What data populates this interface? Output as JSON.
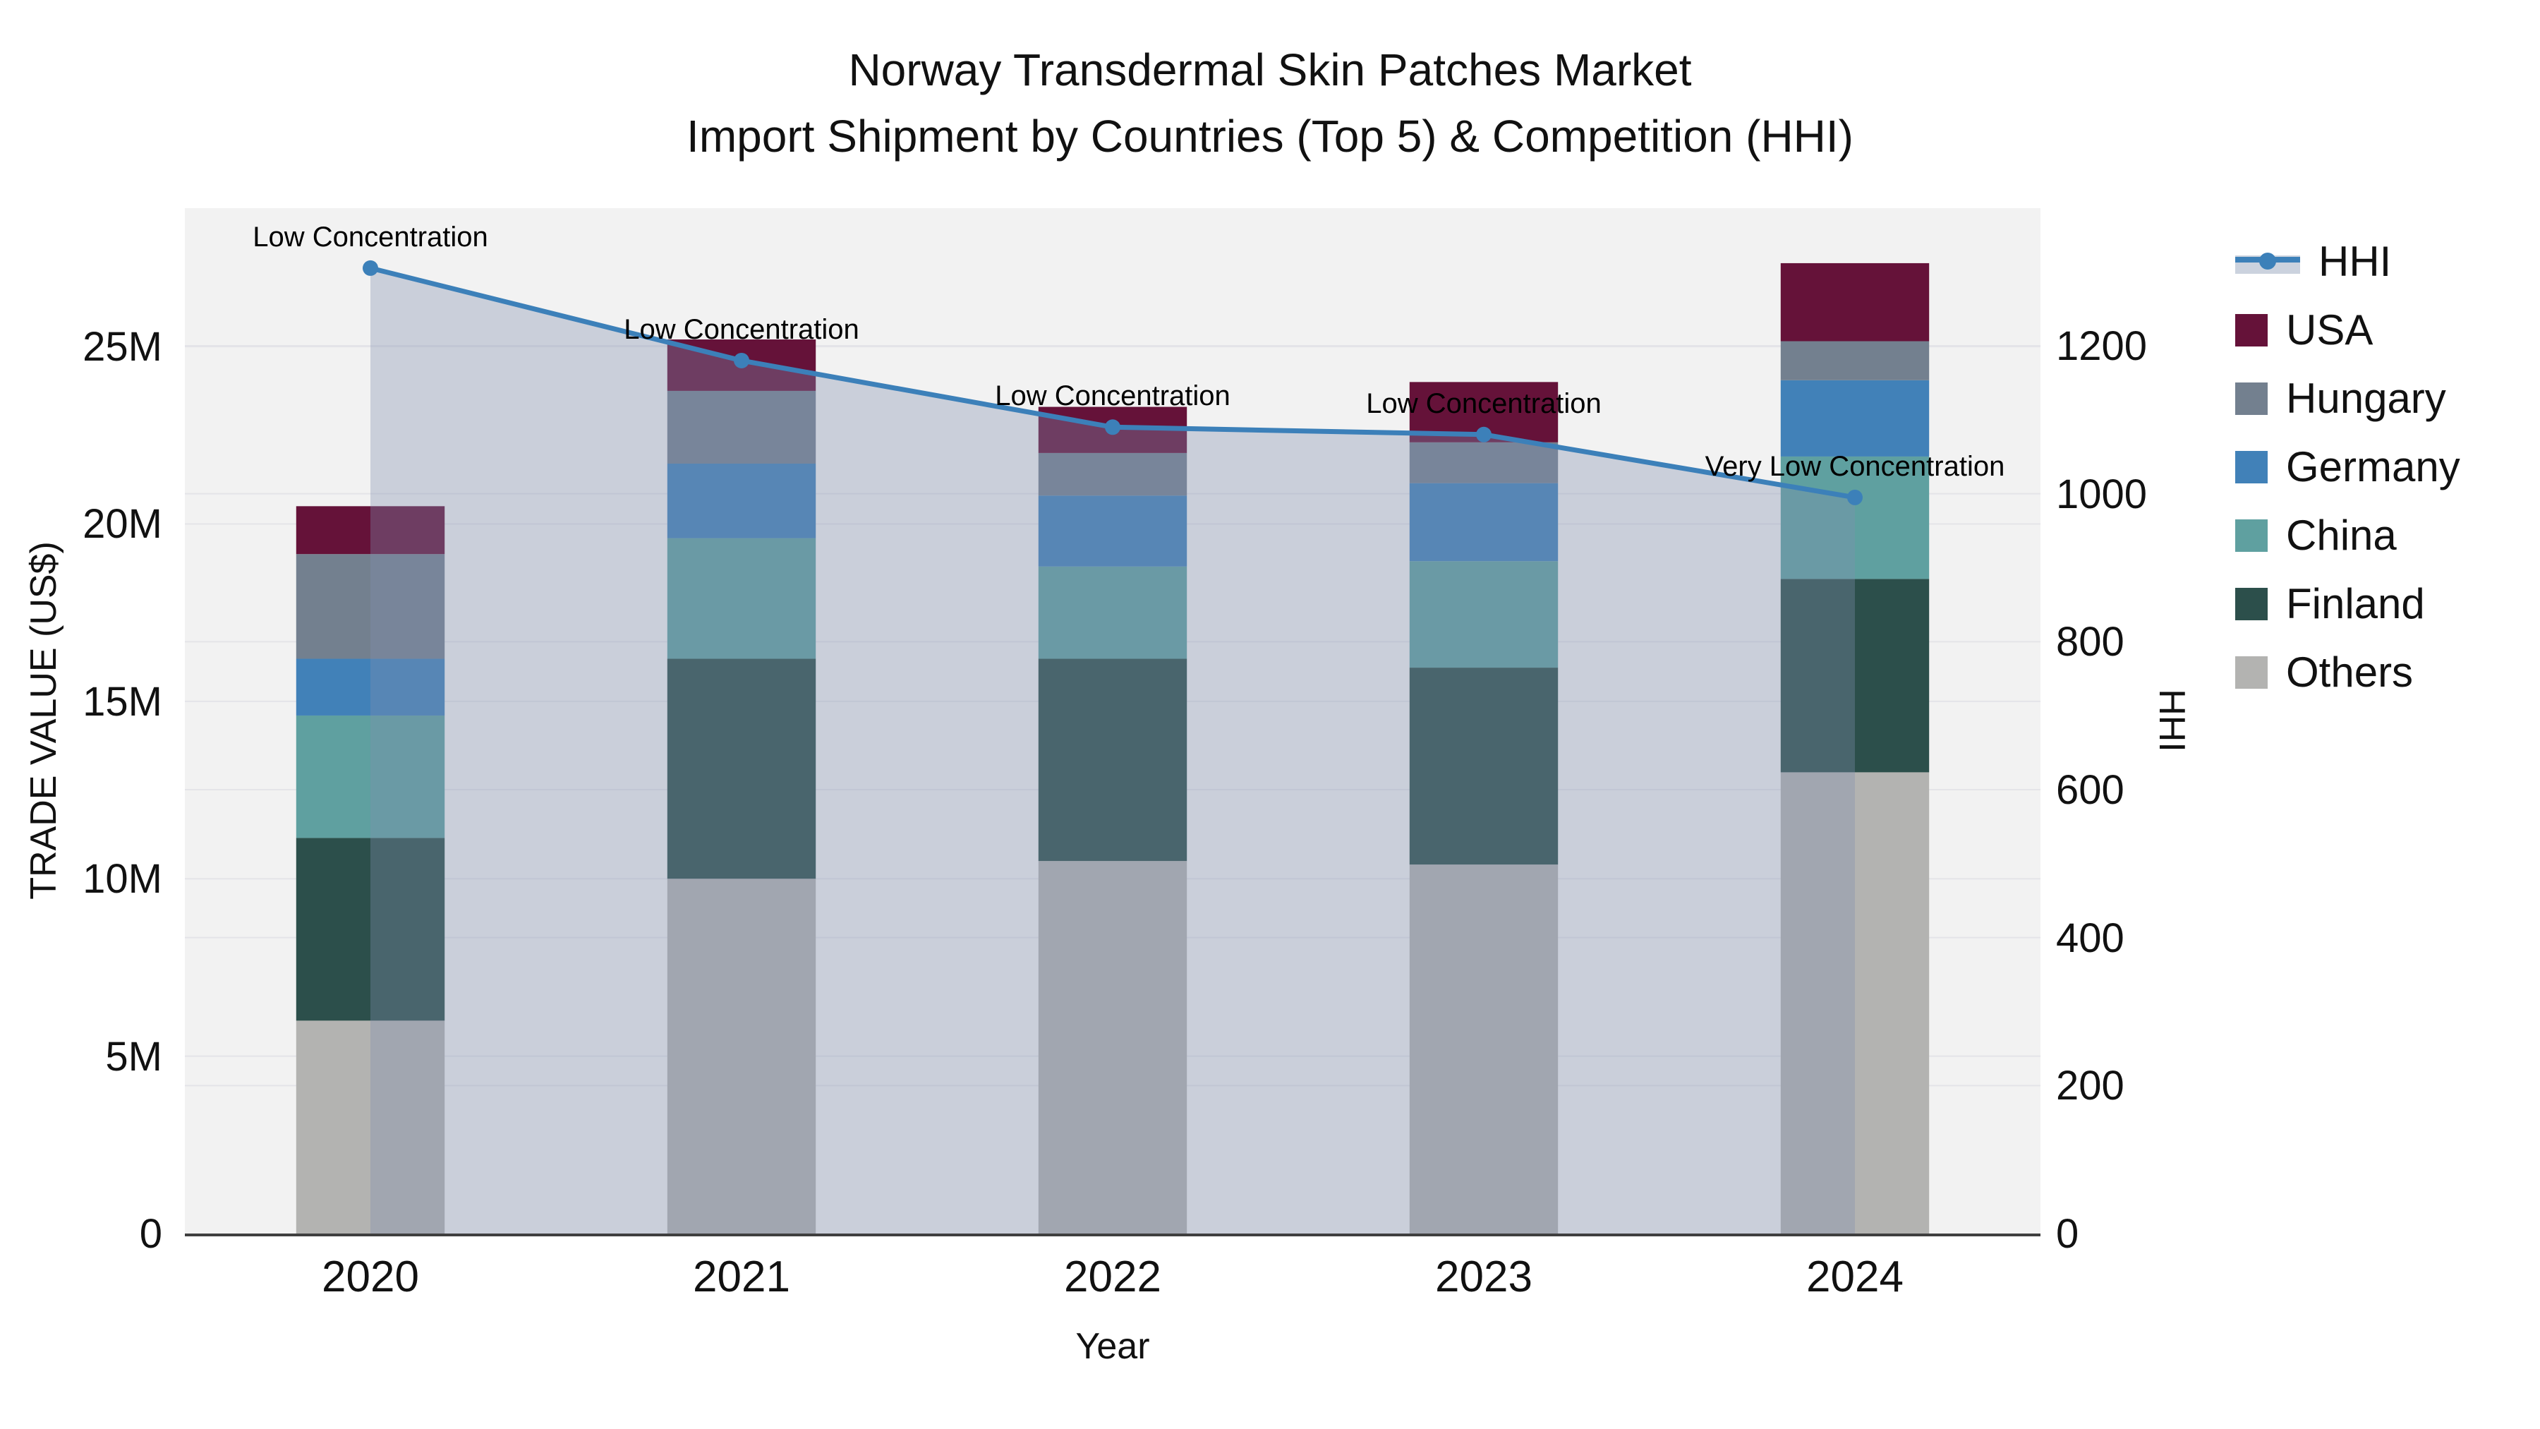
{
  "title": {
    "line1": "Norway Transdermal Skin Patches Market",
    "line2": "Import Shipment by Countries (Top 5) & Competition (HHI)"
  },
  "axes": {
    "x": {
      "title": "Year",
      "tick_labels": [
        "2020",
        "2021",
        "2022",
        "2023",
        "2024"
      ]
    },
    "y_left": {
      "title": "TRADE VALUE (US$)",
      "tick_labels": [
        "0",
        "5M",
        "10M",
        "15M",
        "20M",
        "25M"
      ],
      "tick_values_musd": [
        0,
        5,
        10,
        15,
        20,
        25
      ],
      "range_musd": [
        0,
        28.9
      ],
      "grid": true
    },
    "y_right": {
      "title": "HHI",
      "tick_labels": [
        "0",
        "200",
        "400",
        "600",
        "800",
        "1000",
        "1200"
      ],
      "tick_values": [
        0,
        200,
        400,
        600,
        800,
        1000,
        1200
      ],
      "range": [
        0,
        1386
      ],
      "grid": true
    }
  },
  "legend": {
    "position": "right",
    "items": [
      {
        "label": "HHI",
        "type": "line",
        "color": "#3C80B9",
        "band_color": "#CBD2DE"
      },
      {
        "label": "USA",
        "type": "swatch",
        "color": "#651239"
      },
      {
        "label": "Hungary",
        "type": "swatch",
        "color": "#73808F"
      },
      {
        "label": "Germany",
        "type": "swatch",
        "color": "#4181B8"
      },
      {
        "label": "China",
        "type": "swatch",
        "color": "#5FA0A0"
      },
      {
        "label": "Finland",
        "type": "swatch",
        "color": "#2C4F4B"
      },
      {
        "label": "Others",
        "type": "swatch",
        "color": "#B3B3B1"
      }
    ]
  },
  "chart_data": {
    "type": "combo-stacked-bar-and-line",
    "categories": [
      "2020",
      "2021",
      "2022",
      "2023",
      "2024"
    ],
    "bar_unit": "million US$ (left axis)",
    "bar_stack_order_bottom_to_top": [
      "Others",
      "Finland",
      "China",
      "Germany",
      "Hungary",
      "USA"
    ],
    "series": [
      {
        "name": "USA",
        "axis": "left",
        "color": "#651239",
        "values": [
          1.35,
          1.45,
          1.3,
          1.7,
          2.2
        ]
      },
      {
        "name": "Hungary",
        "axis": "left",
        "color": "#73808F",
        "values": [
          2.95,
          2.05,
          1.2,
          1.15,
          1.1
        ]
      },
      {
        "name": "Germany",
        "axis": "left",
        "color": "#4181B8",
        "values": [
          1.6,
          2.1,
          2.0,
          2.2,
          2.15
        ]
      },
      {
        "name": "China",
        "axis": "left",
        "color": "#5FA0A0",
        "values": [
          3.45,
          3.4,
          2.6,
          3.0,
          3.45
        ]
      },
      {
        "name": "Finland",
        "axis": "left",
        "color": "#2C4F4B",
        "values": [
          5.15,
          6.2,
          5.7,
          5.55,
          5.45
        ]
      },
      {
        "name": "Others",
        "axis": "left",
        "color": "#B3B3B1",
        "values": [
          6.0,
          10.0,
          10.5,
          10.4,
          13.0
        ]
      }
    ],
    "bar_totals_musd": [
      20.5,
      25.2,
      23.3,
      24.0,
      27.35
    ],
    "line_series": {
      "name": "HHI",
      "axis": "right",
      "values": [
        1305,
        1180,
        1090,
        1080,
        995
      ],
      "color": "#3C80B9",
      "marker": "circle",
      "area_fill_color": "#808EB0",
      "area_fill_opacity": 0.35
    },
    "annotations": [
      {
        "x": "2020",
        "text": "Low Concentration"
      },
      {
        "x": "2021",
        "text": "Low Concentration"
      },
      {
        "x": "2022",
        "text": "Low Concentration"
      },
      {
        "x": "2023",
        "text": "Low Concentration"
      },
      {
        "x": "2024",
        "text": "Very Low Concentration"
      }
    ],
    "layout_hints": {
      "plot_bg": "#F2F2F2",
      "grid_color": "#E4E4E8",
      "axis_line_color": "#3F3F3F",
      "legend_position": "right",
      "bar_width_fraction": 0.4
    }
  }
}
